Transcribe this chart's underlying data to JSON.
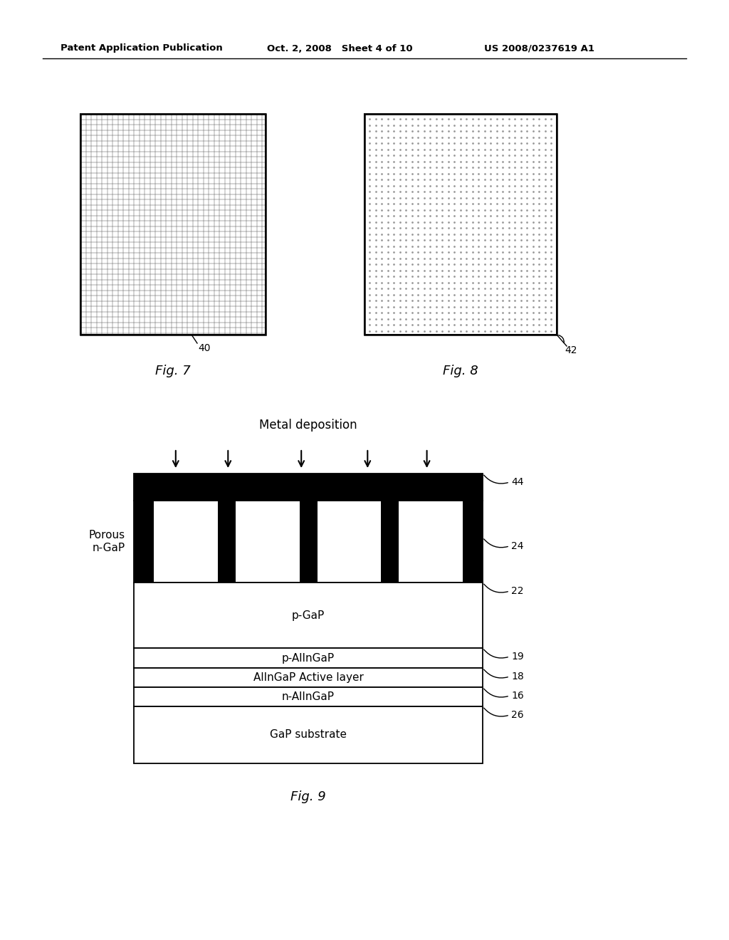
{
  "header_left": "Patent Application Publication",
  "header_mid": "Oct. 2, 2008   Sheet 4 of 10",
  "header_right": "US 2008/0237619 A1",
  "fig7_label": "Fig. 7",
  "fig8_label": "Fig. 8",
  "fig9_label": "Fig. 9",
  "ref40": "40",
  "ref42": "42",
  "ref44": "44",
  "ref24": "24",
  "ref22": "22",
  "ref19": "19",
  "ref18": "18",
  "ref16": "16",
  "ref26": "26",
  "metal_dep_text": "Metal deposition",
  "porous_ngap": "Porous\nn-GaP",
  "layer_labels": [
    "p-GaP",
    "p-AlInGaP",
    "AlInGaP Active layer",
    "n-AlInGaP",
    "GaP substrate"
  ],
  "bg_color": "#ffffff",
  "black": "#000000",
  "grid_color": "#555555",
  "dot_color": "#999999"
}
